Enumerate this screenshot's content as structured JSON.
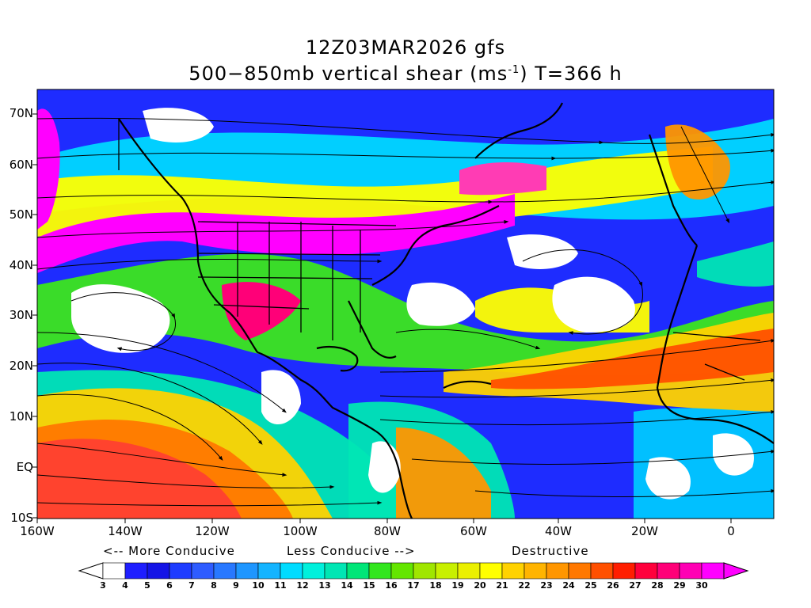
{
  "title": {
    "line1": "12Z03MAR2026 gfs",
    "line2_pre": "500−850mb vertical shear (ms",
    "line2_sup": "-1",
    "line2_post": ") T=366 h"
  },
  "map": {
    "lat_labels": [
      "70N",
      "60N",
      "50N",
      "40N",
      "30N",
      "20N",
      "10N",
      "EQ",
      "10S"
    ],
    "lon_labels": [
      "160W",
      "140W",
      "120W",
      "100W",
      "80W",
      "60W",
      "40W",
      "20W",
      "0"
    ],
    "features": [
      "shear-shading",
      "streamlines",
      "coastlines",
      "state-borders"
    ]
  },
  "legend": {
    "more_conducive": "<-- More Conducive",
    "less_conducive": "Less Conducive -->",
    "destructive": "Destructive",
    "ticks": [
      "3",
      "4",
      "5",
      "6",
      "7",
      "8",
      "9",
      "10",
      "11",
      "12",
      "13",
      "14",
      "15",
      "16",
      "17",
      "18",
      "19",
      "20",
      "21",
      "22",
      "23",
      "24",
      "25",
      "26",
      "27",
      "28",
      "29",
      "30"
    ],
    "colors": [
      "#ffffff",
      "#1e1eff",
      "#1414e6",
      "#1e3cff",
      "#2e5cff",
      "#2878ff",
      "#1e96ff",
      "#14b4ff",
      "#00dcff",
      "#00f0dc",
      "#00e6b4",
      "#00e678",
      "#32e61e",
      "#64e600",
      "#a0e600",
      "#c8f000",
      "#ebf000",
      "#ffff00",
      "#ffd200",
      "#ffb400",
      "#ff9600",
      "#ff7800",
      "#ff5000",
      "#ff1e00",
      "#ff003c",
      "#ff0078",
      "#ff00b4",
      "#ff00ff"
    ]
  }
}
